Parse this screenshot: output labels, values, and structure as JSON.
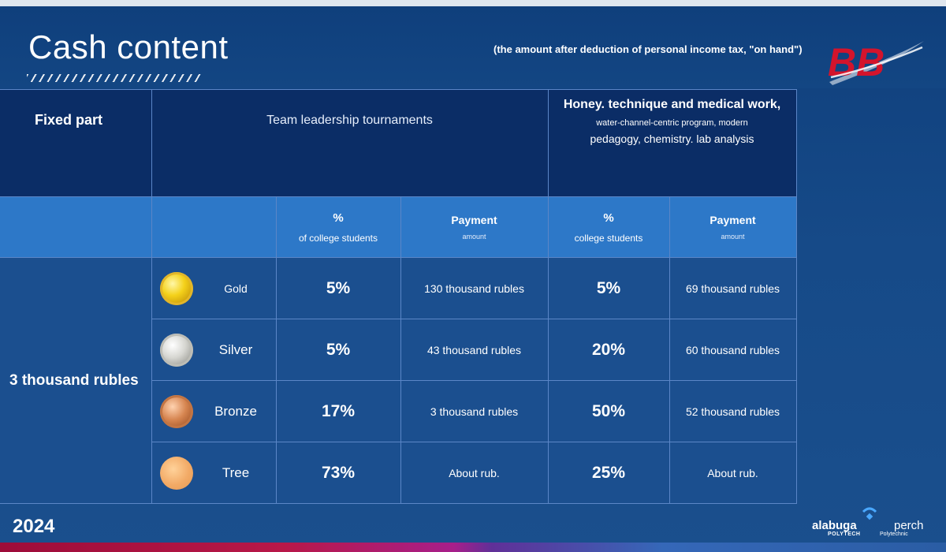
{
  "header": {
    "title": "Cash content",
    "subtitle": "(the amount after deduction of personal income tax, \"on hand\")",
    "logo_text": "BB",
    "colors": {
      "logo_red": "#d3142c",
      "background": "#164a88"
    }
  },
  "table": {
    "fixed_part_header": "Fixed part",
    "team_header": "Team leadership tournaments",
    "med_header": {
      "line1": "Honey. technique and medical work,",
      "line2": "water-channel-centric program, modern",
      "line3": "pedagogy, chemistry. lab analysis"
    },
    "subheaders": {
      "team_pct": "%",
      "team_pct_label": "of college students",
      "team_pay": "Payment",
      "team_pay_label": "amount",
      "med_pct": "%",
      "med_pct_label": "college students",
      "med_pay": "Payment",
      "med_pay_label": "amount"
    },
    "fixed_value": "3 thousand rubles",
    "rows": [
      {
        "medal": "gold-medal-icon",
        "name": "Gold",
        "team_pct": "5%",
        "team_pay": "130 thousand rubles",
        "med_pct": "5%",
        "med_pay": "69 thousand rubles"
      },
      {
        "medal": "silver-medal-icon",
        "name": "Silver",
        "team_pct": "5%",
        "team_pay": "43 thousand rubles",
        "med_pct": "20%",
        "med_pay": "60 thousand rubles"
      },
      {
        "medal": "bronze-medal-icon",
        "name": "Bronze",
        "team_pct": "17%",
        "team_pay": "3 thousand rubles",
        "med_pct": "50%",
        "med_pay": "52 thousand rubles"
      },
      {
        "medal": "tree-medal-icon",
        "name": "Tree",
        "team_pct": "73%",
        "team_pay": "About rub.",
        "med_pct": "25%",
        "med_pay": "About rub."
      }
    ]
  },
  "footer": {
    "year": "2024",
    "brand1": "alabuga",
    "brand1_sub": "POLYTECH",
    "brand2": "perch",
    "brand2_sub": "Polytechnic"
  }
}
